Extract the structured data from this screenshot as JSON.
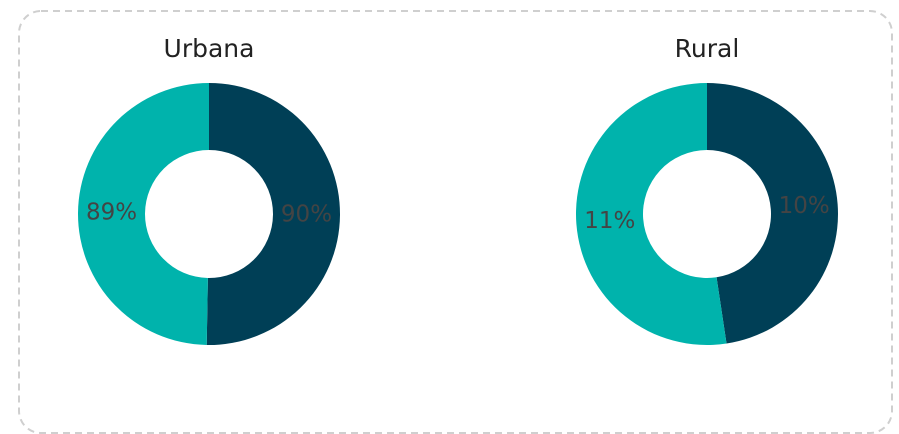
{
  "chart_data": [
    {
      "type": "pie",
      "title": "Urbana",
      "values": [
        90,
        89
      ],
      "value_labels": [
        "90%",
        "89%"
      ],
      "colors": [
        "#003f56",
        "#00b3ac"
      ],
      "donut": true
    },
    {
      "type": "pie",
      "title": "Rural",
      "values": [
        10,
        11
      ],
      "value_labels": [
        "10%",
        "11%"
      ],
      "colors": [
        "#003f56",
        "#00b3ac"
      ],
      "donut": true
    }
  ]
}
